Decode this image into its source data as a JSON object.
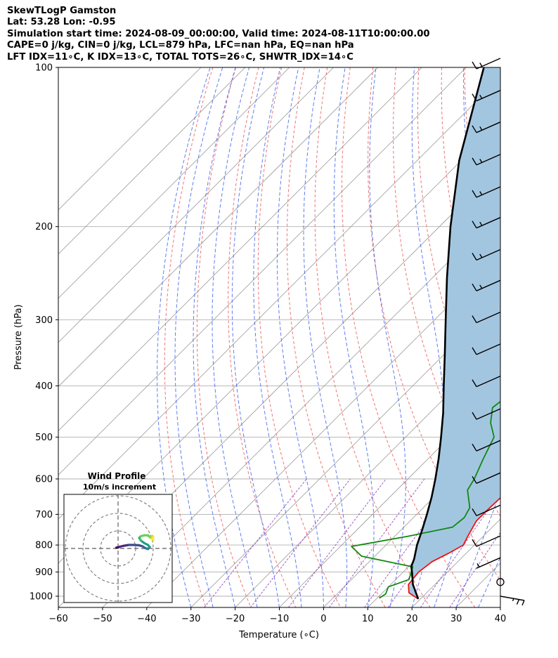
{
  "header": {
    "line1": "SkewTLogP Gamston",
    "line2": "Lat: 53.28   Lon: -0.95",
    "line3": "Simulation start time: 2024-08-09_00:00:00, Valid time: 2024-08-11T10:00:00.00",
    "line4": "CAPE=0 j/kg, CIN=0 j/kg, LCL=879 hPa, LFC=nan hPa, EQ=nan hPa",
    "line5": "LFT IDX=11∘C, K IDX=13∘C, TOTAL TOTS=26∘C, SHWTR_IDX=14∘C"
  },
  "chart_data": [
    {
      "type": "line",
      "xlabel": "Temperature (∘C)",
      "ylabel": "Pressure (hPa)",
      "xlim": [
        -60,
        40
      ],
      "ylim": [
        1050,
        100
      ],
      "y_scale": "log",
      "skew_deg": 45,
      "x_ticks": [
        -60,
        -50,
        -40,
        -30,
        -20,
        -10,
        0,
        10,
        20,
        30,
        40
      ],
      "y_ticks": [
        1000,
        900,
        800,
        700,
        600,
        500,
        400,
        300,
        200,
        100
      ],
      "grid": true,
      "colors": {
        "temperature": "#ee1111",
        "dewpoint": "#118811",
        "parcel": "#000000",
        "shade": "#a3c6e0",
        "dry_adiabat": "#ee6666",
        "moist_adiabat": "#4466ee",
        "mixing_ratio": "#8833bb",
        "isotherm": "#999999"
      },
      "series": [
        {
          "key": "temperature",
          "points": [
            [
              1012,
              19.5
            ],
            [
              985,
              16
            ],
            [
              950,
              14
            ],
            [
              900,
              13.5
            ],
            [
              860,
              14.2
            ],
            [
              830,
              16
            ],
            [
              800,
              17.5
            ],
            [
              770,
              16.5
            ],
            [
              720,
              15
            ],
            [
              690,
              15
            ],
            [
              650,
              15.2
            ],
            [
              600,
              14.5
            ],
            [
              560,
              12.5
            ],
            [
              500,
              9.5
            ],
            [
              450,
              7
            ],
            [
              400,
              4
            ],
            [
              350,
              1
            ],
            [
              300,
              -2
            ],
            [
              270,
              -4
            ],
            [
              250,
              -6
            ],
            [
              230,
              -8
            ],
            [
              215,
              -10
            ],
            [
              200,
              -12
            ],
            [
              190,
              -14
            ],
            [
              180,
              -14
            ],
            [
              172,
              -12
            ],
            [
              160,
              -11
            ],
            [
              150,
              -10
            ],
            [
              140,
              -8
            ],
            [
              130,
              -6
            ],
            [
              120,
              -6
            ],
            [
              110,
              -5
            ],
            [
              100,
              -3
            ]
          ]
        },
        {
          "key": "dewpoint",
          "points": [
            [
              1008,
              10.5
            ],
            [
              990,
              11
            ],
            [
              960,
              10
            ],
            [
              930,
              13
            ],
            [
              880,
              11
            ],
            [
              840,
              -3
            ],
            [
              805,
              -7.5
            ],
            [
              770,
              3
            ],
            [
              740,
              11
            ],
            [
              710,
              11.5
            ],
            [
              680,
              10.5
            ],
            [
              630,
              6
            ],
            [
              600,
              5
            ],
            [
              550,
              2.5
            ],
            [
              500,
              0
            ],
            [
              470,
              -4
            ],
            [
              440,
              -7
            ],
            [
              410,
              -6
            ],
            [
              380,
              -8
            ],
            [
              350,
              -14
            ],
            [
              330,
              -17
            ],
            [
              300,
              -16
            ],
            [
              270,
              -15
            ],
            [
              250,
              -16
            ],
            [
              230,
              -18
            ],
            [
              200,
              -21
            ],
            [
              180,
              -22
            ],
            [
              160,
              -24
            ],
            [
              145,
              -24
            ],
            [
              135,
              -28
            ],
            [
              120,
              -30
            ],
            [
              100,
              -30
            ]
          ]
        },
        {
          "key": "parcel",
          "points": [
            [
              1012,
              19.5
            ],
            [
              950,
              15
            ],
            [
              900,
              12
            ],
            [
              879,
              10.6
            ],
            [
              850,
              9.5
            ],
            [
              800,
              7
            ],
            [
              750,
              4.8
            ],
            [
              700,
              2.3
            ],
            [
              650,
              -0.5
            ],
            [
              600,
              -3.8
            ],
            [
              550,
              -7.6
            ],
            [
              500,
              -12
            ],
            [
              450,
              -17
            ],
            [
              400,
              -23
            ],
            [
              350,
              -29.7
            ],
            [
              300,
              -37.5
            ],
            [
              250,
              -46.7
            ],
            [
              200,
              -57.5
            ],
            [
              150,
              -70.5
            ],
            [
              100,
              -86
            ]
          ]
        }
      ],
      "shade_between": [
        "temperature",
        "parcel"
      ]
    },
    {
      "type": "scatter",
      "title": "Wind Profile",
      "subtitle": "10m/s increment",
      "ring_step_ms": 10,
      "rings": 3,
      "colormap": "viridis",
      "hodograph_uv": [
        [
          -1,
          0.5
        ],
        [
          -0.5,
          0.5
        ],
        [
          0,
          0.6
        ],
        [
          1,
          1
        ],
        [
          3,
          1.5
        ],
        [
          6,
          2
        ],
        [
          9,
          2
        ],
        [
          12,
          1.8
        ],
        [
          14,
          1.2
        ],
        [
          15,
          0.5
        ],
        [
          16,
          0
        ],
        [
          17,
          -0.3
        ],
        [
          18,
          0.8
        ],
        [
          17,
          2
        ],
        [
          15,
          3
        ],
        [
          13,
          4.5
        ],
        [
          12,
          6
        ],
        [
          13,
          7
        ],
        [
          15,
          7.5
        ],
        [
          17,
          7.5
        ],
        [
          18.5,
          6
        ],
        [
          19.5,
          7
        ],
        [
          20,
          6.5
        ],
        [
          19.5,
          5.5
        ],
        [
          20,
          4.8
        ]
      ]
    },
    {
      "type": "barbs",
      "barbs": [
        {
          "p": 100,
          "kt": 15
        },
        {
          "p": 115,
          "kt": 15
        },
        {
          "p": 132,
          "kt": 15
        },
        {
          "p": 152,
          "kt": 15
        },
        {
          "p": 175,
          "kt": 15
        },
        {
          "p": 200,
          "kt": 15
        },
        {
          "p": 230,
          "kt": 15
        },
        {
          "p": 263,
          "kt": 15
        },
        {
          "p": 302,
          "kt": 10
        },
        {
          "p": 347,
          "kt": 10
        },
        {
          "p": 399,
          "kt": 10
        },
        {
          "p": 460,
          "kt": 10
        },
        {
          "p": 528,
          "kt": 10
        },
        {
          "p": 608,
          "kt": 10
        },
        {
          "p": 700,
          "kt": 10
        },
        {
          "p": 800,
          "kt": 10
        },
        {
          "p": 880,
          "kt": 5
        },
        {
          "p": 940,
          "kt": 0
        },
        {
          "p": 1000,
          "kt": 25
        }
      ]
    }
  ]
}
